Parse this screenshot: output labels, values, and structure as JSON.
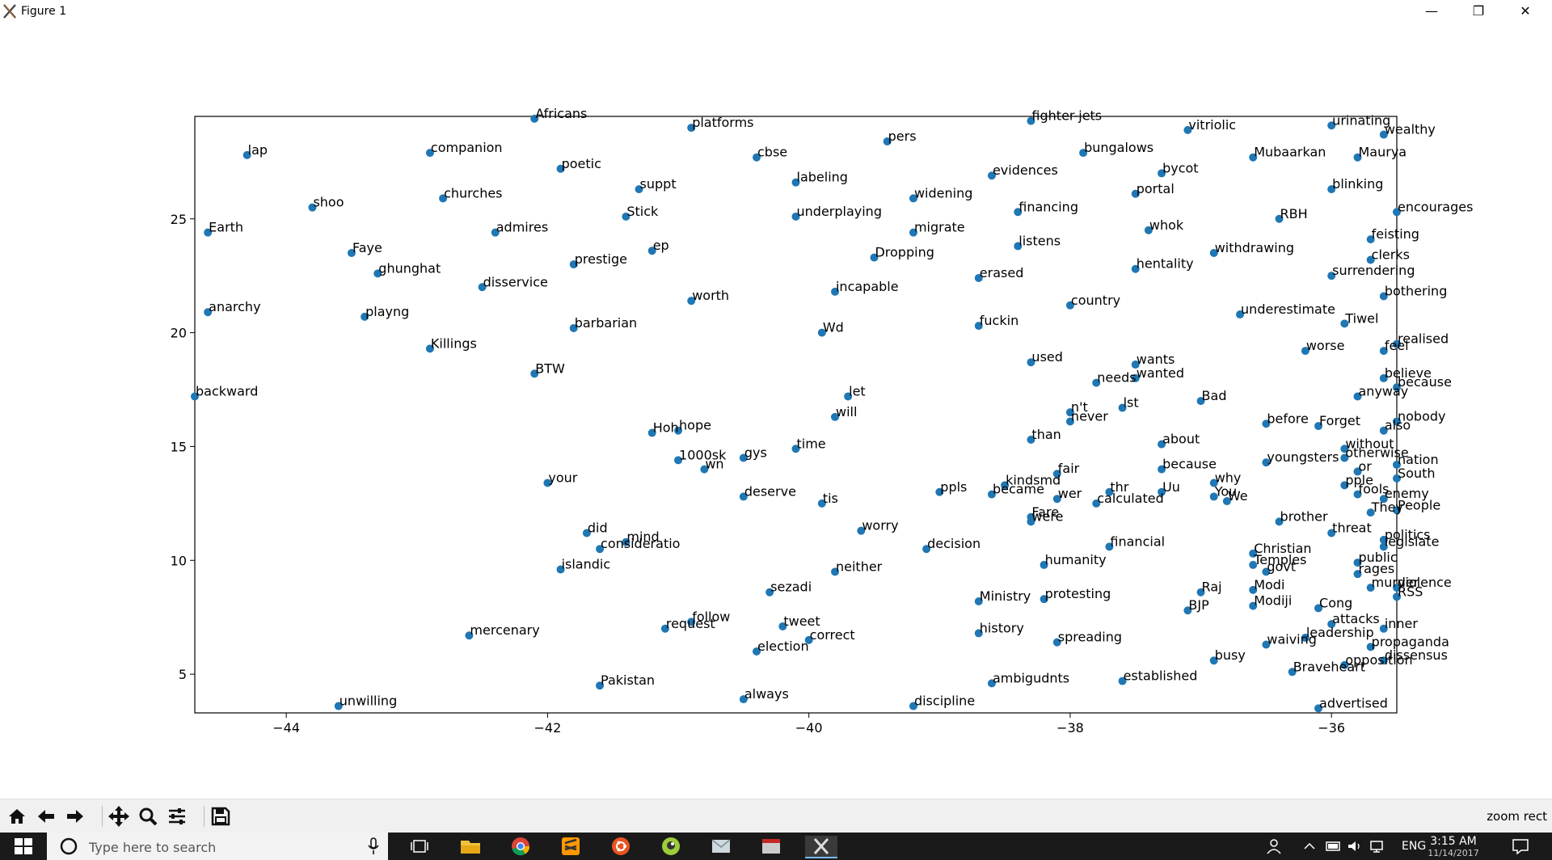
{
  "window": {
    "title": "Figure 1",
    "minimize": "—",
    "restore": "❐",
    "close": "✕"
  },
  "toolbar": {
    "status": "zoom rect",
    "buttons": [
      "home-icon",
      "back-icon",
      "forward-icon",
      "pan-icon",
      "zoom-icon",
      "configure-subplots-icon",
      "save-icon"
    ]
  },
  "taskbar": {
    "search_placeholder": "Type here to search",
    "time": "3:15 AM",
    "date": "11/14/2017",
    "language": "ENG"
  },
  "colors": {
    "point": "#1f77b4",
    "taskbar": "#1a1a1a",
    "toolbar": "#f0f0f0"
  },
  "chart_data": {
    "type": "scatter",
    "title": "",
    "xlabel": "",
    "ylabel": "",
    "xlim": [
      -44.7,
      -35.5
    ],
    "ylim": [
      3.3,
      29.5
    ],
    "xticks": [
      -44,
      -42,
      -40,
      -38,
      -36
    ],
    "yticks": [
      5,
      10,
      15,
      20,
      25
    ],
    "xtick_labels": [
      "−44",
      "−42",
      "−40",
      "−38",
      "−36"
    ],
    "ytick_labels": [
      "5",
      "10",
      "15",
      "20",
      "25"
    ],
    "points": [
      {
        "label": "Africans",
        "x": -42.1,
        "y": 29.4
      },
      {
        "label": "platforms",
        "x": -40.9,
        "y": 29.0
      },
      {
        "label": "fighter-jets",
        "x": -38.3,
        "y": 29.3
      },
      {
        "label": "vitriolic",
        "x": -37.1,
        "y": 28.9
      },
      {
        "label": "urinating",
        "x": -36.0,
        "y": 29.1
      },
      {
        "label": "wealthy",
        "x": -35.6,
        "y": 28.7
      },
      {
        "label": "lap",
        "x": -44.3,
        "y": 27.8
      },
      {
        "label": "companion",
        "x": -42.9,
        "y": 27.9
      },
      {
        "label": "poetic",
        "x": -41.9,
        "y": 27.2
      },
      {
        "label": "cbse",
        "x": -40.4,
        "y": 27.7
      },
      {
        "label": "pers",
        "x": -39.4,
        "y": 28.4
      },
      {
        "label": "bungalows",
        "x": -37.9,
        "y": 27.9
      },
      {
        "label": "Mubaarkan",
        "x": -36.6,
        "y": 27.7
      },
      {
        "label": "Maurya",
        "x": -35.8,
        "y": 27.7
      },
      {
        "label": "labeling",
        "x": -40.1,
        "y": 26.6
      },
      {
        "label": "evidences",
        "x": -38.6,
        "y": 26.9
      },
      {
        "label": "bycot",
        "x": -37.3,
        "y": 27.0
      },
      {
        "label": "churches",
        "x": -42.8,
        "y": 25.9
      },
      {
        "label": "shoo",
        "x": -43.8,
        "y": 25.5
      },
      {
        "label": "suppt",
        "x": -41.3,
        "y": 26.3
      },
      {
        "label": "widening",
        "x": -39.2,
        "y": 25.9
      },
      {
        "label": "portal",
        "x": -37.5,
        "y": 26.1
      },
      {
        "label": "blinking",
        "x": -36.0,
        "y": 26.3
      },
      {
        "label": "encourages",
        "x": -35.5,
        "y": 25.3
      },
      {
        "label": "Earth",
        "x": -44.6,
        "y": 24.4
      },
      {
        "label": "admires",
        "x": -42.4,
        "y": 24.4
      },
      {
        "label": "Stick",
        "x": -41.4,
        "y": 25.1
      },
      {
        "label": "underplaying",
        "x": -40.1,
        "y": 25.1
      },
      {
        "label": "financing",
        "x": -38.4,
        "y": 25.3
      },
      {
        "label": "migrate",
        "x": -39.2,
        "y": 24.4
      },
      {
        "label": "whok",
        "x": -37.4,
        "y": 24.5
      },
      {
        "label": "RBH",
        "x": -36.4,
        "y": 25.0
      },
      {
        "label": "feisting",
        "x": -35.7,
        "y": 24.1
      },
      {
        "label": "Faye",
        "x": -43.5,
        "y": 23.5
      },
      {
        "label": "ep",
        "x": -41.2,
        "y": 23.6
      },
      {
        "label": "listens",
        "x": -38.4,
        "y": 23.8
      },
      {
        "label": "withdrawing",
        "x": -36.9,
        "y": 23.5
      },
      {
        "label": "clerks",
        "x": -35.7,
        "y": 23.2
      },
      {
        "label": "prestige",
        "x": -41.8,
        "y": 23.0
      },
      {
        "label": "Dropping",
        "x": -39.5,
        "y": 23.3
      },
      {
        "label": "ghunghat",
        "x": -43.3,
        "y": 22.6
      },
      {
        "label": "hentality",
        "x": -37.5,
        "y": 22.8
      },
      {
        "label": "surrendering",
        "x": -36.0,
        "y": 22.5
      },
      {
        "label": "disservice",
        "x": -42.5,
        "y": 22.0
      },
      {
        "label": "erased",
        "x": -38.7,
        "y": 22.4
      },
      {
        "label": "bothering",
        "x": -35.6,
        "y": 21.6
      },
      {
        "label": "incapable",
        "x": -39.8,
        "y": 21.8
      },
      {
        "label": "worth",
        "x": -40.9,
        "y": 21.4
      },
      {
        "label": "country",
        "x": -38.0,
        "y": 21.2
      },
      {
        "label": "underestimate",
        "x": -36.7,
        "y": 20.8
      },
      {
        "label": "anarchy",
        "x": -44.6,
        "y": 20.9
      },
      {
        "label": "playng",
        "x": -43.4,
        "y": 20.7
      },
      {
        "label": "fuckin",
        "x": -38.7,
        "y": 20.3
      },
      {
        "label": "Tiwel",
        "x": -35.9,
        "y": 20.4
      },
      {
        "label": "barbarian",
        "x": -41.8,
        "y": 20.2
      },
      {
        "label": "Wd",
        "x": -39.9,
        "y": 20.0
      },
      {
        "label": "Killings",
        "x": -42.9,
        "y": 19.3
      },
      {
        "label": "feel",
        "x": -35.6,
        "y": 19.2
      },
      {
        "label": "realised",
        "x": -35.5,
        "y": 19.5
      },
      {
        "label": "worse",
        "x": -36.2,
        "y": 19.2
      },
      {
        "label": "used",
        "x": -38.3,
        "y": 18.7
      },
      {
        "label": "wants",
        "x": -37.5,
        "y": 18.6
      },
      {
        "label": "BTW",
        "x": -42.1,
        "y": 18.2
      },
      {
        "label": "wanted",
        "x": -37.5,
        "y": 18.0
      },
      {
        "label": "needs",
        "x": -37.8,
        "y": 17.8
      },
      {
        "label": "believe",
        "x": -35.6,
        "y": 18.0
      },
      {
        "label": "because",
        "x": -35.5,
        "y": 17.6
      },
      {
        "label": "backward",
        "x": -44.7,
        "y": 17.2
      },
      {
        "label": "let",
        "x": -39.7,
        "y": 17.2
      },
      {
        "label": "anyway",
        "x": -35.8,
        "y": 17.2
      },
      {
        "label": "Bad",
        "x": -37.0,
        "y": 17.0
      },
      {
        "label": "n't",
        "x": -38.0,
        "y": 16.5
      },
      {
        "label": "lst",
        "x": -37.6,
        "y": 16.7
      },
      {
        "label": "will",
        "x": -39.8,
        "y": 16.3
      },
      {
        "label": "never",
        "x": -38.0,
        "y": 16.1
      },
      {
        "label": "Forget",
        "x": -36.1,
        "y": 15.9
      },
      {
        "label": "nobody",
        "x": -35.5,
        "y": 16.1
      },
      {
        "label": "hope",
        "x": -41.0,
        "y": 15.7
      },
      {
        "label": "Hoh",
        "x": -41.2,
        "y": 15.6
      },
      {
        "label": "before",
        "x": -36.5,
        "y": 16.0
      },
      {
        "label": "also",
        "x": -35.6,
        "y": 15.7
      },
      {
        "label": "than",
        "x": -38.3,
        "y": 15.3
      },
      {
        "label": "about",
        "x": -37.3,
        "y": 15.1
      },
      {
        "label": "without",
        "x": -35.9,
        "y": 14.9
      },
      {
        "label": "time",
        "x": -40.1,
        "y": 14.9
      },
      {
        "label": "gys",
        "x": -40.5,
        "y": 14.5
      },
      {
        "label": "1000sk",
        "x": -41.0,
        "y": 14.4
      },
      {
        "label": "otherwise",
        "x": -35.9,
        "y": 14.5
      },
      {
        "label": "because",
        "x": -37.3,
        "y": 14.0
      },
      {
        "label": "youngsters",
        "x": -36.5,
        "y": 14.3
      },
      {
        "label": "nation",
        "x": -35.5,
        "y": 14.2
      },
      {
        "label": "fair",
        "x": -38.1,
        "y": 13.8
      },
      {
        "label": "or",
        "x": -35.8,
        "y": 13.9
      },
      {
        "label": "South",
        "x": -35.5,
        "y": 13.6
      },
      {
        "label": "wn",
        "x": -40.8,
        "y": 14.0
      },
      {
        "label": "your",
        "x": -42.0,
        "y": 13.4
      },
      {
        "label": "why",
        "x": -36.9,
        "y": 13.4
      },
      {
        "label": "kindsmd",
        "x": -38.5,
        "y": 13.3
      },
      {
        "label": "Uu",
        "x": -37.3,
        "y": 13.0
      },
      {
        "label": "thr",
        "x": -37.7,
        "y": 13.0
      },
      {
        "label": "pple",
        "x": -35.9,
        "y": 13.3
      },
      {
        "label": "ppls",
        "x": -39.0,
        "y": 13.0
      },
      {
        "label": "fools",
        "x": -35.8,
        "y": 12.9
      },
      {
        "label": "enemy",
        "x": -35.6,
        "y": 12.7
      },
      {
        "label": "You",
        "x": -36.9,
        "y": 12.8
      },
      {
        "label": "became",
        "x": -38.6,
        "y": 12.9
      },
      {
        "label": "deserve",
        "x": -40.5,
        "y": 12.8
      },
      {
        "label": "calculated",
        "x": -37.8,
        "y": 12.5
      },
      {
        "label": "wer",
        "x": -38.1,
        "y": 12.7
      },
      {
        "label": "We",
        "x": -36.8,
        "y": 12.6
      },
      {
        "label": "tis",
        "x": -39.9,
        "y": 12.5
      },
      {
        "label": "People",
        "x": -35.5,
        "y": 12.2
      },
      {
        "label": "They",
        "x": -35.7,
        "y": 12.1
      },
      {
        "label": "brother",
        "x": -36.4,
        "y": 11.7
      },
      {
        "label": "were",
        "x": -38.3,
        "y": 11.7
      },
      {
        "label": "Fare",
        "x": -38.3,
        "y": 11.9
      },
      {
        "label": "worry",
        "x": -39.6,
        "y": 11.3
      },
      {
        "label": "threat",
        "x": -36.0,
        "y": 11.2
      },
      {
        "label": "did",
        "x": -41.7,
        "y": 11.2
      },
      {
        "label": "politics",
        "x": -35.6,
        "y": 10.9
      },
      {
        "label": "mind",
        "x": -41.4,
        "y": 10.8
      },
      {
        "label": "consideratio",
        "x": -41.6,
        "y": 10.5
      },
      {
        "label": "legislate",
        "x": -35.6,
        "y": 10.6
      },
      {
        "label": "financial",
        "x": -37.7,
        "y": 10.6
      },
      {
        "label": "decision",
        "x": -39.1,
        "y": 10.5
      },
      {
        "label": "Christian",
        "x": -36.6,
        "y": 10.3
      },
      {
        "label": "public",
        "x": -35.8,
        "y": 9.9
      },
      {
        "label": "humanity",
        "x": -38.2,
        "y": 9.8
      },
      {
        "label": "Temples",
        "x": -36.6,
        "y": 9.8
      },
      {
        "label": "neither",
        "x": -39.8,
        "y": 9.5
      },
      {
        "label": "islandic",
        "x": -41.9,
        "y": 9.6
      },
      {
        "label": "govt",
        "x": -36.5,
        "y": 9.5
      },
      {
        "label": "rages",
        "x": -35.8,
        "y": 9.4
      },
      {
        "label": "violence",
        "x": -35.5,
        "y": 8.8
      },
      {
        "label": "murder",
        "x": -35.7,
        "y": 8.8
      },
      {
        "label": "RSS",
        "x": -35.5,
        "y": 8.4
      },
      {
        "label": "sezadi",
        "x": -40.3,
        "y": 8.6
      },
      {
        "label": "Modi",
        "x": -36.6,
        "y": 8.7
      },
      {
        "label": "Raj",
        "x": -37.0,
        "y": 8.6
      },
      {
        "label": "protesting",
        "x": -38.2,
        "y": 8.3
      },
      {
        "label": "Ministry",
        "x": -38.7,
        "y": 8.2
      },
      {
        "label": "Modiji",
        "x": -36.6,
        "y": 8.0
      },
      {
        "label": "Cong",
        "x": -36.1,
        "y": 7.9
      },
      {
        "label": "BJP",
        "x": -37.1,
        "y": 7.8
      },
      {
        "label": "mercenary",
        "x": -42.6,
        "y": 6.7
      },
      {
        "label": "request",
        "x": -41.1,
        "y": 7.0
      },
      {
        "label": "follow",
        "x": -40.9,
        "y": 7.3
      },
      {
        "label": "tweet",
        "x": -40.2,
        "y": 7.1
      },
      {
        "label": "attacks",
        "x": -36.0,
        "y": 7.2
      },
      {
        "label": "inner",
        "x": -35.6,
        "y": 7.0
      },
      {
        "label": "history",
        "x": -38.7,
        "y": 6.8
      },
      {
        "label": "correct",
        "x": -40.0,
        "y": 6.5
      },
      {
        "label": "spreading",
        "x": -38.1,
        "y": 6.4
      },
      {
        "label": "leadership",
        "x": -36.2,
        "y": 6.6
      },
      {
        "label": "waiving",
        "x": -36.5,
        "y": 6.3
      },
      {
        "label": "propaganda",
        "x": -35.7,
        "y": 6.2
      },
      {
        "label": "election",
        "x": -40.4,
        "y": 6.0
      },
      {
        "label": "busy",
        "x": -36.9,
        "y": 5.6
      },
      {
        "label": "dissensus",
        "x": -35.6,
        "y": 5.6
      },
      {
        "label": "opposition",
        "x": -35.9,
        "y": 5.4
      },
      {
        "label": "Pakistan",
        "x": -41.6,
        "y": 4.5
      },
      {
        "label": "ambigudnts",
        "x": -38.6,
        "y": 4.6
      },
      {
        "label": "established",
        "x": -37.6,
        "y": 4.7
      },
      {
        "label": "Braveheart",
        "x": -36.3,
        "y": 5.1
      },
      {
        "label": "always",
        "x": -40.5,
        "y": 3.9
      },
      {
        "label": "unwilling",
        "x": -43.6,
        "y": 3.6
      },
      {
        "label": "discipline",
        "x": -39.2,
        "y": 3.6
      },
      {
        "label": "advertised",
        "x": -36.1,
        "y": 3.5
      }
    ]
  }
}
